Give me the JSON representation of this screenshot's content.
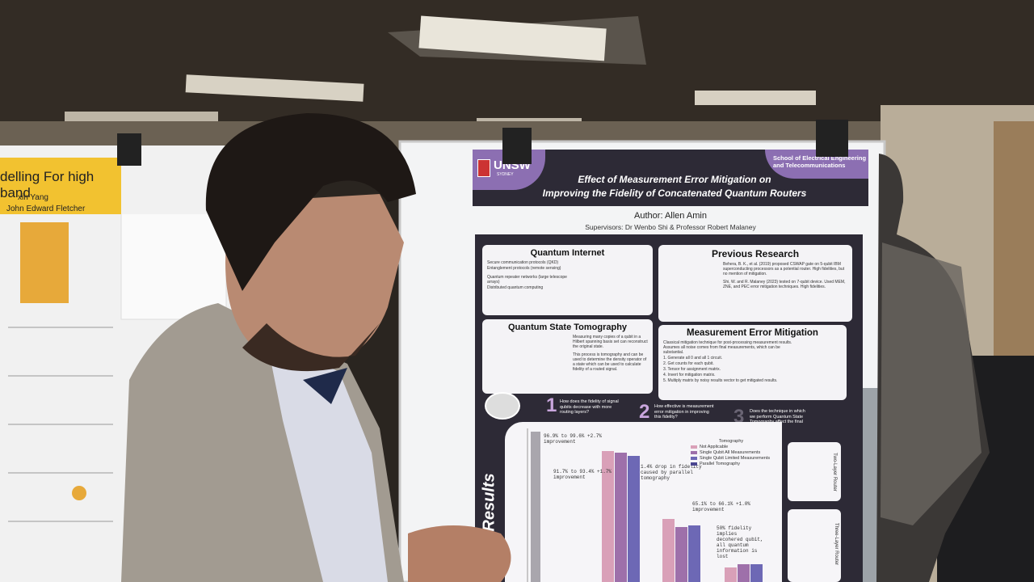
{
  "left_poster": {
    "title": "delling For high band",
    "authors": [
      "xin Yang",
      "John Edward Fletcher"
    ]
  },
  "main_poster": {
    "header": {
      "logo": "UNSW",
      "logo_sub": "SYDNEY",
      "school": "School of Electrical Engineering and Telecommunications",
      "title_line1": "Effect of Measurement Error Mitigation on",
      "title_line2": "Improving the Fidelity of Concatenated Quantum Routers"
    },
    "author": "Author: Allen Amin",
    "supervisors": "Supervisors: Dr Wenbo Shi & Professor Robert Malaney",
    "sections": [
      {
        "title": "Quantum Internet",
        "lines": [
          "Secure communication protocols (QKD)",
          "Entanglement protocols (remote sensing)",
          "Quantum repeater networks (large telescope arrays)",
          "Distributed quantum computing"
        ]
      },
      {
        "title": "Previous Research",
        "lines": [
          "Behera, B. K., et al. (2019) proposed CSWAP gate on 5-qubit IBM superconducting processors as a potential router. High fidelities, but no mention of mitigation.",
          "Shi, W. and R. Malaney (2023) tested on 7-qubit device. Used MEM, ZNE, and PEC error mitigation techniques. High fidelities."
        ]
      },
      {
        "title": "Quantum State Tomography",
        "lines": [
          "Measuring many copies of a qubit in a Hilbert spanning basis set can reconstruct the original state.",
          "This process is tomography and can be used to determine the density operator of a state which can be used to calculate fidelity of a routed signal."
        ]
      },
      {
        "title": "Measurement Error Mitigation",
        "lines": [
          "Classical mitigation technique for post-processing measurement results. Assumes all noise comes from final measurements, which can be substantial.",
          "1. Generate all 0 and all 1 circuit.",
          "2. Get counts for each qubit.",
          "3. Tensor for assignment matrix.",
          "4. Invert for mitigation matrix.",
          "5. Multiply matrix by noisy results vector to get mitigated results."
        ]
      }
    ],
    "questions": [
      {
        "number": "1",
        "text": "How does the fidelity of signal qubits decrease with more routing layers?"
      },
      {
        "number": "2",
        "text": "How effective is measurement error mitigation in improving this fidelity?"
      },
      {
        "number": "3",
        "text": "Does the technique in which we perform Quantum State Tomography affect the final result?"
      }
    ],
    "results_label": "Results",
    "legend": {
      "title": "Tomography",
      "entries": [
        "Not Applicable",
        "Single Qubit All Measurements",
        "Single Qubit Limited Measurements",
        "Parallel Tomography"
      ]
    },
    "annotations": [
      "96.9% to 99.6% +2.7% improvement",
      "91.7% to 93.4% +1.7% improvement",
      "1.4% drop in fidelity caused by parallel tomography",
      "65.1% to 66.1% +1.0% improvement",
      "50% fidelity implies decohered qubit, all quantum information is lost"
    ],
    "side_labels": [
      "Two-Layer Router",
      "Three-Layer Router"
    ]
  }
}
